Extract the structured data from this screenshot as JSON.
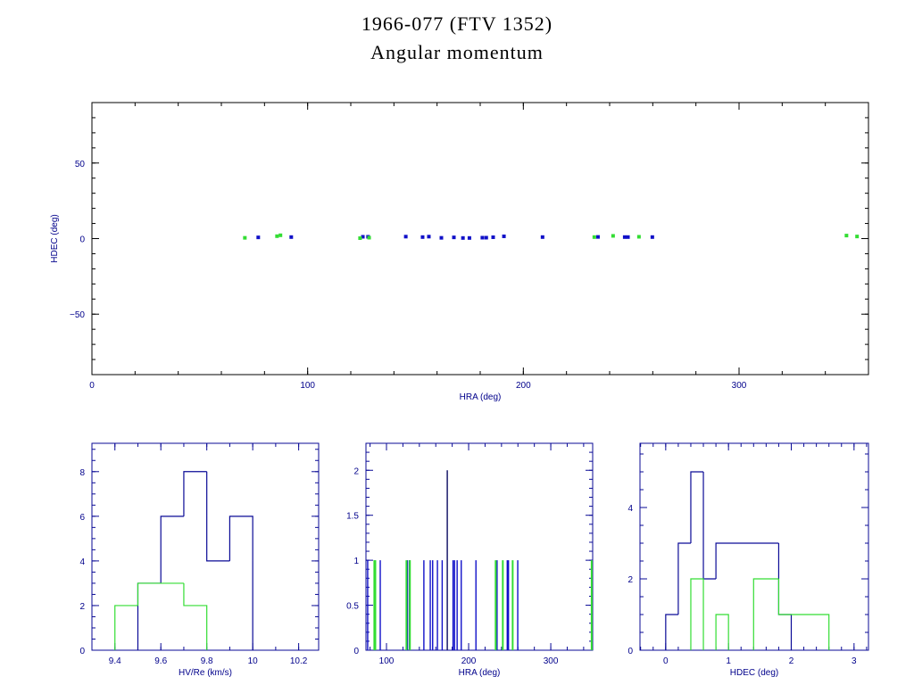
{
  "title": "1966-077 (FTV 1352)",
  "subtitle": "Angular momentum",
  "colors": {
    "axis": "#0a0a96",
    "blue": "#1010c8",
    "green": "#33dd33",
    "spike": "#0a0a60"
  },
  "chart_data": [
    {
      "type": "scatter",
      "xlabel": "HRA (deg)",
      "ylabel": "HDEC (deg)",
      "xlim": [
        0,
        360
      ],
      "ylim": [
        -90,
        90
      ],
      "xticks": [
        {
          "v": 0,
          "label": "0"
        },
        {
          "v": 100,
          "label": "100"
        },
        {
          "v": 200,
          "label": "200"
        },
        {
          "v": 300,
          "label": "300"
        }
      ],
      "yticks": [
        {
          "v": -50,
          "label": "−50"
        },
        {
          "v": 0,
          "label": "0"
        },
        {
          "v": 50,
          "label": "50"
        }
      ],
      "series": [
        {
          "name": "blue",
          "points": [
            [
              77.1,
              0.8
            ],
            [
              92.4,
              1
            ],
            [
              125.6,
              1.2
            ],
            [
              128,
              1.2
            ],
            [
              145.5,
              1.3
            ],
            [
              153.3,
              1
            ],
            [
              156.2,
              1.3
            ],
            [
              162,
              0.5
            ],
            [
              167.8,
              0.8
            ],
            [
              172,
              0.4
            ],
            [
              175,
              0.4
            ],
            [
              181,
              0.6
            ],
            [
              182.8,
              0.6
            ],
            [
              186,
              0.9
            ],
            [
              191,
              1.5
            ],
            [
              208.9,
              1
            ],
            [
              234.6,
              1.1
            ],
            [
              247,
              1
            ],
            [
              248.5,
              1
            ],
            [
              259.8,
              1
            ]
          ]
        },
        {
          "name": "green",
          "points": [
            [
              70.9,
              0.5
            ],
            [
              85.8,
              1.6
            ],
            [
              87.4,
              2.2
            ],
            [
              124.3,
              0.3
            ],
            [
              128.5,
              0.6
            ],
            [
              232.9,
              1
            ],
            [
              241.6,
              1.8
            ],
            [
              253.6,
              1.2
            ],
            [
              349.8,
              2
            ],
            [
              354.7,
              1.4
            ]
          ]
        }
      ]
    },
    {
      "type": "histogram",
      "xlabel": "HV/Re (km/s)",
      "ylabel": "",
      "xlim": [
        9.3,
        10.287
      ],
      "ylim": [
        0,
        9.27
      ],
      "xticks": [
        {
          "v": 9.4,
          "label": "9.4"
        },
        {
          "v": 9.6,
          "label": "9.6"
        },
        {
          "v": 9.8,
          "label": "9.8"
        },
        {
          "v": 10,
          "label": "10"
        },
        {
          "v": 10.2,
          "label": "10.2"
        }
      ],
      "yticks": [
        {
          "v": 0,
          "label": "0"
        },
        {
          "v": 2,
          "label": "2"
        },
        {
          "v": 4,
          "label": "4"
        },
        {
          "v": 6,
          "label": "6"
        },
        {
          "v": 8,
          "label": "8"
        }
      ],
      "series": [
        {
          "name": "blue",
          "bins": [
            [
              9.5,
              9.6,
              3
            ],
            [
              9.6,
              9.7,
              6
            ],
            [
              9.7,
              9.8,
              8
            ],
            [
              9.8,
              9.9,
              4
            ],
            [
              9.9,
              10.0,
              6
            ]
          ]
        },
        {
          "name": "green",
          "bins": [
            [
              9.4,
              9.5,
              2
            ],
            [
              9.5,
              9.6,
              3
            ],
            [
              9.6,
              9.7,
              3
            ],
            [
              9.7,
              9.8,
              2
            ]
          ]
        }
      ]
    },
    {
      "type": "histogram-spikes",
      "xlabel": "HRA (deg)",
      "ylabel": "",
      "xlim": [
        75,
        351
      ],
      "ylim": [
        0,
        2.3
      ],
      "xticks": [
        {
          "v": 100,
          "label": "100"
        },
        {
          "v": 200,
          "label": "200"
        },
        {
          "v": 300,
          "label": "300"
        }
      ],
      "yticks": [
        {
          "v": 0,
          "label": "0"
        },
        {
          "v": 0.5,
          "label": "0.5"
        },
        {
          "v": 1,
          "label": "1"
        },
        {
          "v": 1.5,
          "label": "1.5"
        },
        {
          "v": 2,
          "label": "2"
        }
      ],
      "series": [
        {
          "name": "blue",
          "spikes": [
            [
              77.1,
              1
            ],
            [
              92.4,
              1
            ],
            [
              125.6,
              1
            ],
            [
              128,
              1
            ],
            [
              145.5,
              1
            ],
            [
              153.3,
              1
            ],
            [
              156.2,
              1
            ],
            [
              162,
              1
            ],
            [
              167.8,
              1
            ],
            [
              174,
              2
            ],
            [
              181,
              1
            ],
            [
              182.8,
              1
            ],
            [
              186,
              1
            ],
            [
              191,
              1
            ],
            [
              208.9,
              1
            ],
            [
              234.6,
              1
            ],
            [
              247,
              1
            ],
            [
              248.5,
              1
            ],
            [
              259.8,
              1
            ]
          ]
        },
        {
          "name": "green",
          "spikes": [
            [
              85.2,
              1
            ],
            [
              86.4,
              1
            ],
            [
              124.3,
              1
            ],
            [
              128.5,
              1
            ],
            [
              232.9,
              1
            ],
            [
              241.6,
              1
            ],
            [
              253.6,
              1
            ],
            [
              349.8,
              1
            ]
          ]
        }
      ]
    },
    {
      "type": "histogram",
      "xlabel": "HDEC (deg)",
      "ylabel": "",
      "xlim": [
        -0.41,
        3.23
      ],
      "ylim": [
        0,
        5.8
      ],
      "xticks": [
        {
          "v": 0,
          "label": "0"
        },
        {
          "v": 1,
          "label": "1"
        },
        {
          "v": 2,
          "label": "2"
        },
        {
          "v": 3,
          "label": "3"
        }
      ],
      "yticks": [
        {
          "v": 0,
          "label": "0"
        },
        {
          "v": 2,
          "label": "2"
        },
        {
          "v": 4,
          "label": "4"
        }
      ],
      "series": [
        {
          "name": "blue",
          "bins": [
            [
              0,
              0.2,
              1
            ],
            [
              0.2,
              0.4,
              3
            ],
            [
              0.4,
              0.6,
              5
            ],
            [
              0.6,
              0.8,
              2
            ],
            [
              0.8,
              1.8,
              3
            ],
            [
              1.8,
              2.0,
              1
            ]
          ]
        },
        {
          "name": "green",
          "bins": [
            [
              0.4,
              0.6,
              2
            ],
            [
              0.8,
              1.0,
              1
            ],
            [
              1.4,
              1.8,
              2
            ],
            [
              1.8,
              2.6,
              1
            ]
          ]
        }
      ]
    }
  ]
}
